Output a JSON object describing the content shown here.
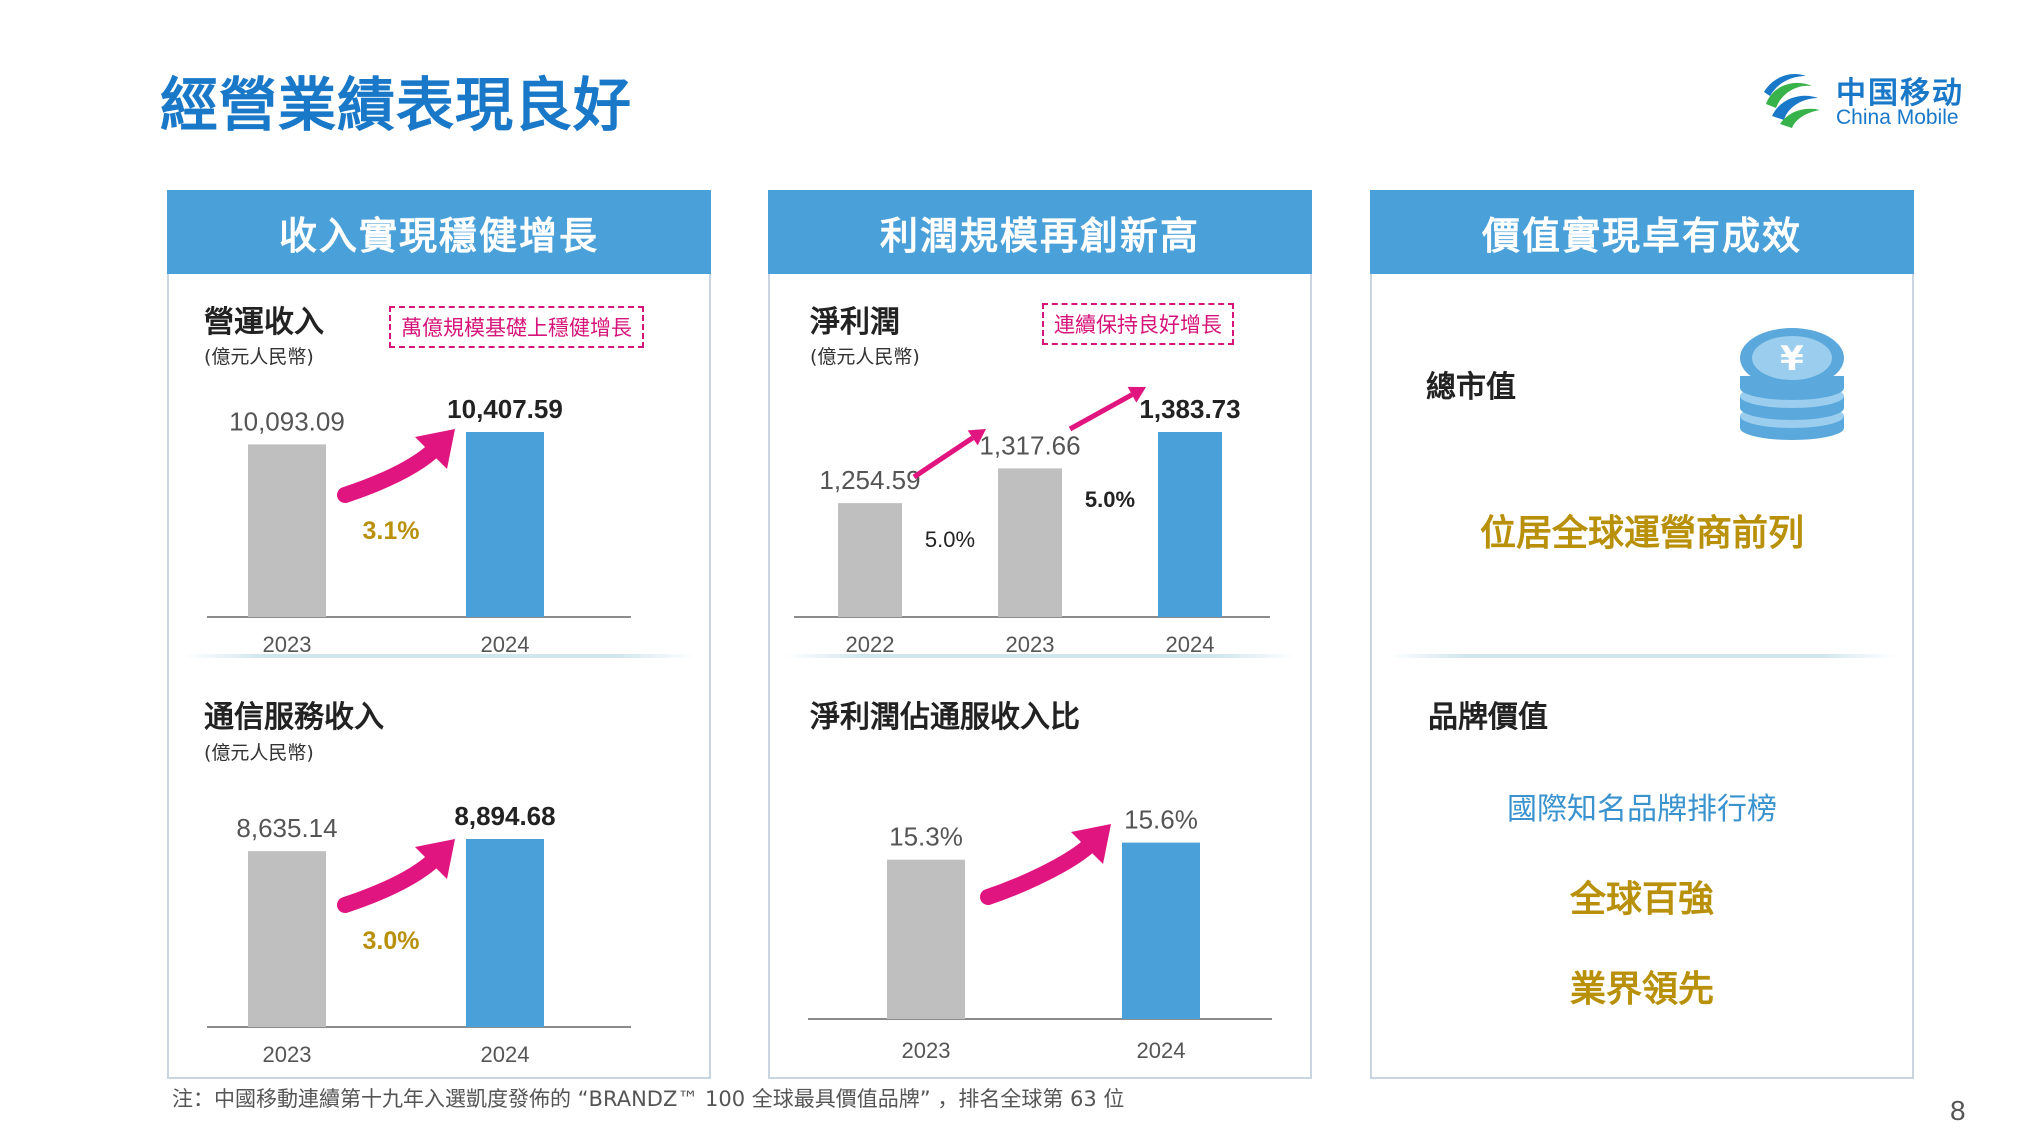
{
  "page_title": "經營業績表現良好",
  "logo": {
    "cn": "中国移动",
    "en": "China Mobile",
    "icon": "china-mobile-logo-icon"
  },
  "colors": {
    "accent_blue": "#4aa0d8",
    "bar_gray": "#bfbfbf",
    "arrow_magenta": "#e0157f",
    "gold": "#b8900a",
    "title_blue": "#1a78c8"
  },
  "panels": {
    "left": {
      "header": "收入實現穩健增長"
    },
    "middle": {
      "header": "利潤規模再創新高"
    },
    "right": {
      "header": "價值實現卓有成效",
      "market_cap_label": "總市值",
      "market_cap_icon": "yen-coins-icon",
      "market_cap_text": "位居全球運營商前列",
      "brand_label": "品牌價值",
      "brand_line1": "國際知名品牌排行榜",
      "brand_line2": "全球百強",
      "brand_line3": "業界領先"
    }
  },
  "chart_data": [
    {
      "type": "bar",
      "title": "營運收入",
      "unit": "(億元人民幣)",
      "callout": "萬億規模基礎上穩健增長",
      "categories": [
        "2023",
        "2024"
      ],
      "values": [
        10093.09,
        10407.59
      ],
      "value_labels": [
        "10,093.09",
        "10,407.59"
      ],
      "growth_labels": [
        "3.1%"
      ]
    },
    {
      "type": "bar",
      "title": "通信服務收入",
      "unit": "(億元人民幣)",
      "categories": [
        "2023",
        "2024"
      ],
      "values": [
        8635.14,
        8894.68
      ],
      "value_labels": [
        "8,635.14",
        "8,894.68"
      ],
      "growth_labels": [
        "3.0%"
      ]
    },
    {
      "type": "bar",
      "title": "淨利潤",
      "unit": "(億元人民幣)",
      "callout": "連續保持良好增長",
      "categories": [
        "2022",
        "2023",
        "2024"
      ],
      "values": [
        1254.59,
        1317.66,
        1383.73
      ],
      "value_labels": [
        "1,254.59",
        "1,317.66",
        "1,383.73"
      ],
      "growth_labels": [
        "5.0%",
        "5.0%"
      ]
    },
    {
      "type": "bar",
      "title": "淨利潤佔通服收入比",
      "categories": [
        "2023",
        "2024"
      ],
      "values": [
        15.3,
        15.6
      ],
      "value_labels": [
        "15.3%",
        "15.6%"
      ],
      "growth_labels": []
    }
  ],
  "footnote": "注：中國移動連續第十九年入選凱度發佈的 “BRANDZ™ 100 全球最具價值品牌” ，排名全球第 63 位",
  "page_number": "8"
}
